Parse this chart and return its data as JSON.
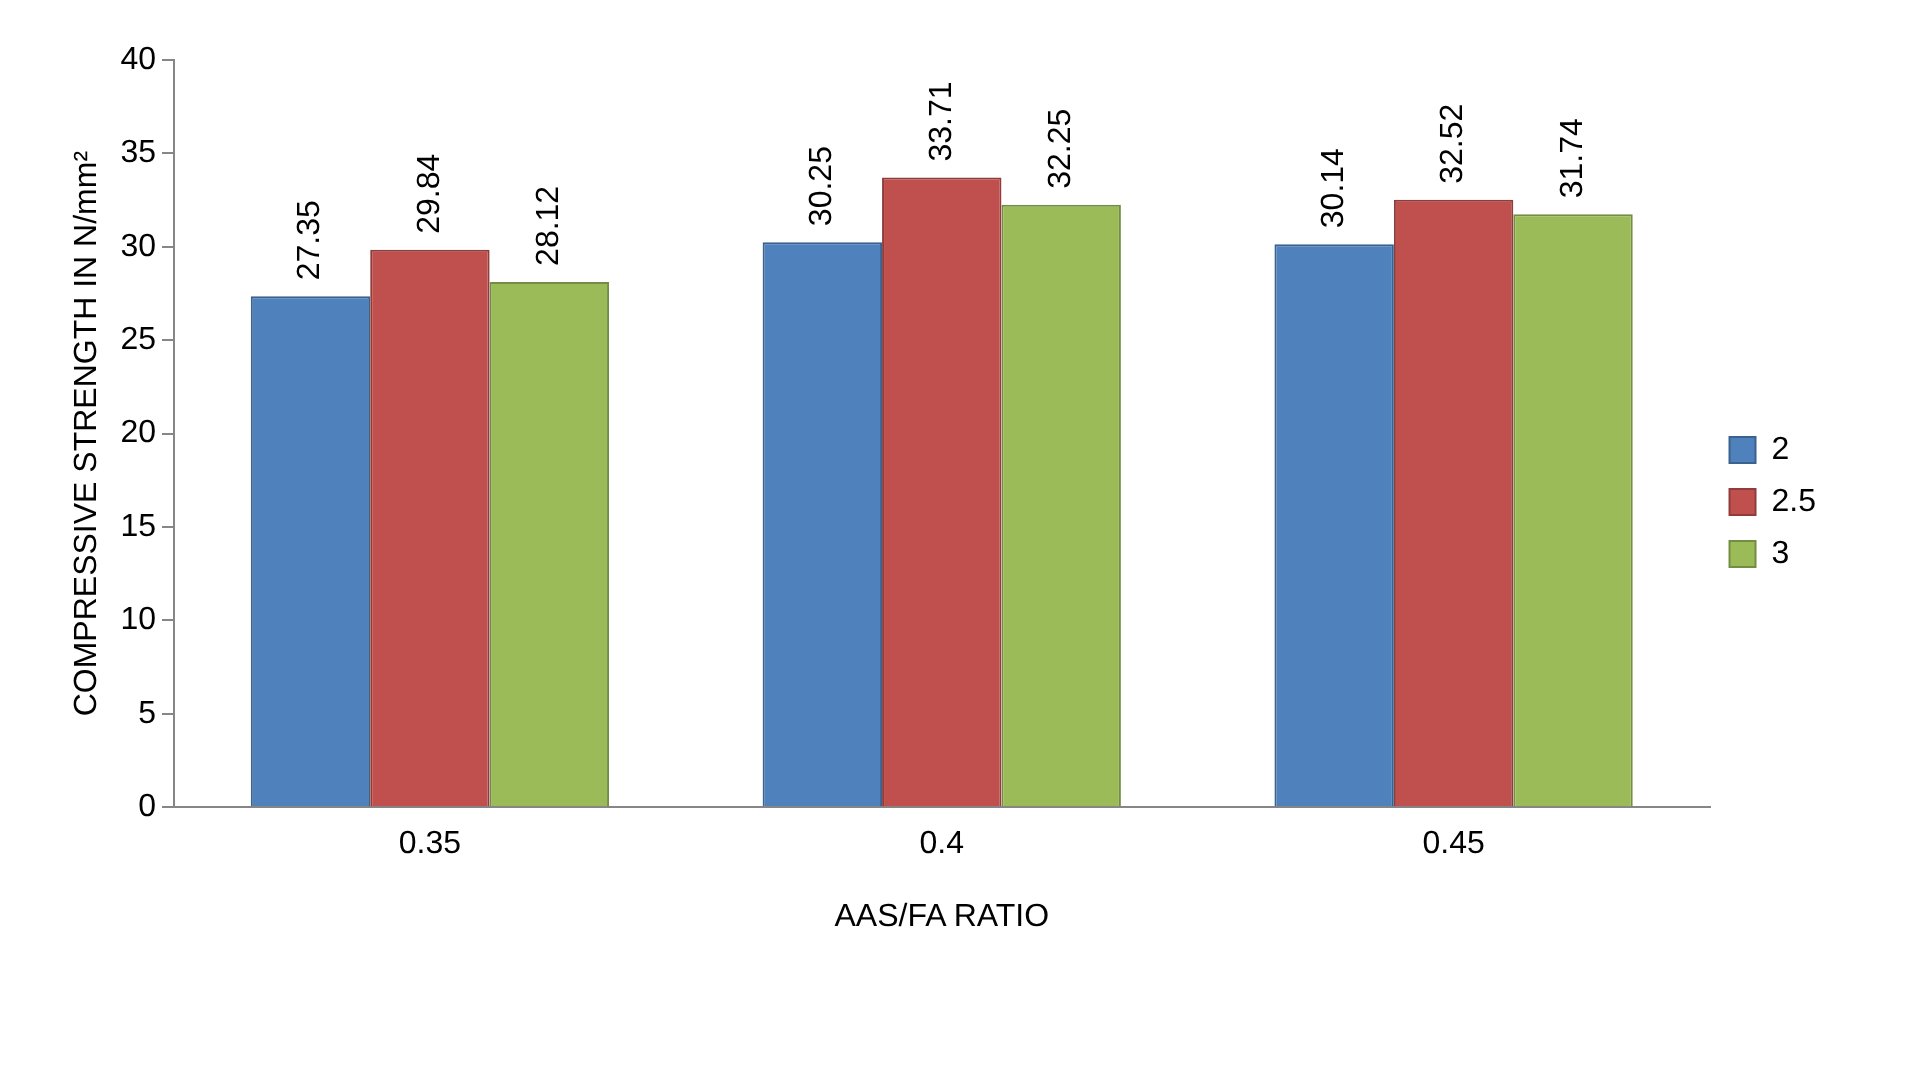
{
  "chart_data": {
    "type": "bar",
    "xlabel": "AAS/FA RATIO",
    "ylabel": "COMPRESSIVE STRENGTH IN N/mm²",
    "categories": [
      "0.35",
      "0.4",
      "0.45"
    ],
    "series": [
      {
        "name": "2",
        "color": "#4f81bd",
        "values": [
          27.35,
          30.25,
          30.14
        ]
      },
      {
        "name": "2.5",
        "color": "#c0504d",
        "values": [
          29.84,
          33.71,
          32.52
        ]
      },
      {
        "name": "3",
        "color": "#9bbb59",
        "values": [
          28.12,
          32.25,
          31.74
        ]
      }
    ],
    "ylim": [
      0,
      40
    ],
    "yticks": [
      0,
      5,
      10,
      15,
      20,
      25,
      30,
      35,
      40
    ],
    "grid": false,
    "legend": "right",
    "data_labels": true
  }
}
